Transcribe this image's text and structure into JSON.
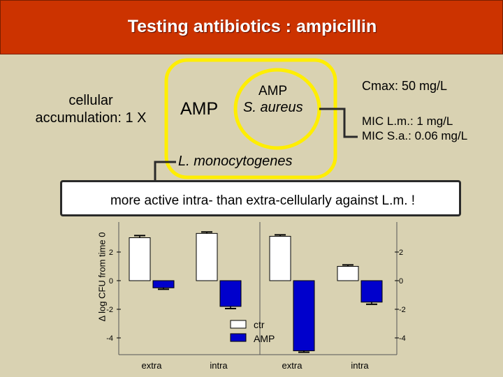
{
  "title": "Testing antibiotics : ampicillin",
  "cellular_accumulation": "cellular accumulation: 1 X",
  "amp_outer": "AMP",
  "amp_inner": "AMP",
  "s_aureus": "S. aureus",
  "l_monocytogenes": "L. monocytogenes",
  "cmax": "Cmax: 50 mg/L",
  "mic_lm": "MIC L.m.: 1 mg/L",
  "mic_sa": "MIC S.a.: 0.06 mg/L",
  "banner": "more active intra- than extra-cellularly against L.m. !",
  "colors": {
    "title_bg": "#cc3300",
    "background": "#d9d2b2",
    "yellow": "#ffee00",
    "amp_bar": "#0000cc",
    "ctr_bar": "#ffffff",
    "leader_line": "#2a2a2a"
  },
  "chart_data": {
    "type": "bar",
    "ylabel": "Δ log CFU from time 0",
    "yticks": [
      2,
      0,
      -2,
      -4
    ],
    "ylim": [
      -5,
      3.6
    ],
    "panels": [
      {
        "name": "left",
        "categories": [
          "extra",
          "intra"
        ],
        "series": [
          {
            "name": "ctr",
            "values": [
              3.0,
              3.3
            ],
            "errors": [
              0.15,
              0.1
            ]
          },
          {
            "name": "AMP",
            "values": [
              -0.5,
              -1.8
            ],
            "errors": [
              0.1,
              0.15
            ]
          }
        ]
      },
      {
        "name": "right",
        "categories": [
          "extra",
          "intra"
        ],
        "series": [
          {
            "name": "ctr",
            "values": [
              3.1,
              1.0
            ],
            "errors": [
              0.1,
              0.1
            ]
          },
          {
            "name": "AMP",
            "values": [
              -4.9,
              -1.5
            ],
            "errors": [
              0.1,
              0.15
            ]
          }
        ]
      }
    ],
    "legend": {
      "entries": [
        "ctr",
        "AMP"
      ],
      "position": "center"
    }
  }
}
